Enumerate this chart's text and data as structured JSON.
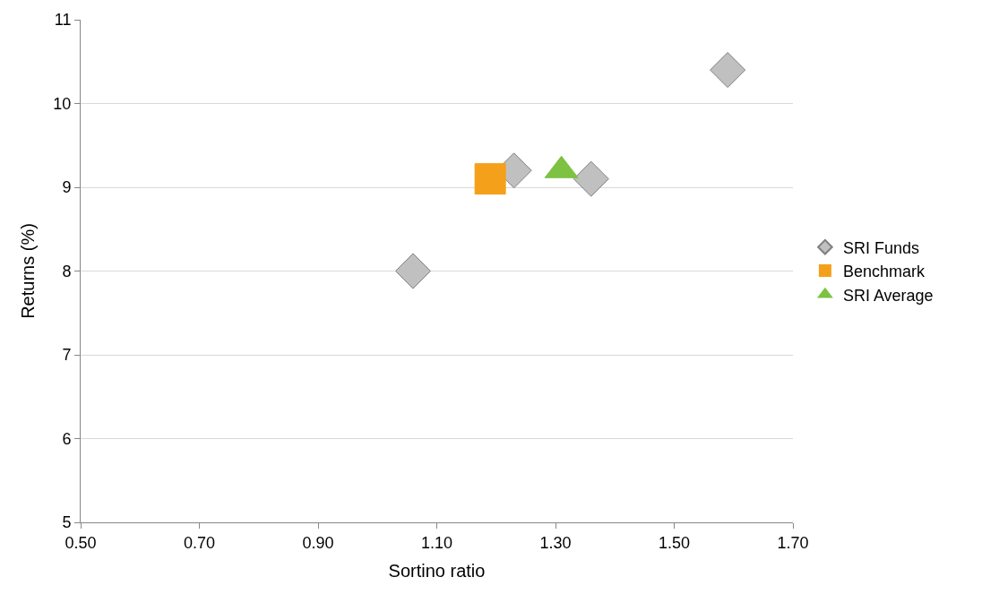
{
  "chart_data": {
    "type": "scatter",
    "xlabel": "Sortino ratio",
    "ylabel": "Returns (%)",
    "xlim": [
      0.5,
      1.7
    ],
    "ylim": [
      5,
      11
    ],
    "xticks": [
      {
        "value": 0.5,
        "label": "0.50"
      },
      {
        "value": 0.7,
        "label": "0.70"
      },
      {
        "value": 0.9,
        "label": "0.90"
      },
      {
        "value": 1.1,
        "label": "1.10"
      },
      {
        "value": 1.3,
        "label": "1.30"
      },
      {
        "value": 1.5,
        "label": "1.50"
      },
      {
        "value": 1.7,
        "label": "1.70"
      }
    ],
    "yticks": [
      5,
      6,
      7,
      8,
      9,
      10,
      11
    ],
    "grid": "y",
    "legend": "right",
    "series": [
      {
        "name": "SRI Funds",
        "color": "#c0c0c0",
        "marker": "diamond",
        "x": [
          1.06,
          1.23,
          1.36,
          1.59
        ],
        "values": [
          8.0,
          9.2,
          9.1,
          10.4
        ]
      },
      {
        "name": "Benchmark",
        "color": "#f5a01a",
        "marker": "square",
        "x": [
          1.19
        ],
        "values": [
          9.1
        ]
      },
      {
        "name": "SRI Average",
        "color": "#7dc242",
        "marker": "triangle",
        "x": [
          1.31
        ],
        "values": [
          9.2
        ]
      }
    ]
  }
}
